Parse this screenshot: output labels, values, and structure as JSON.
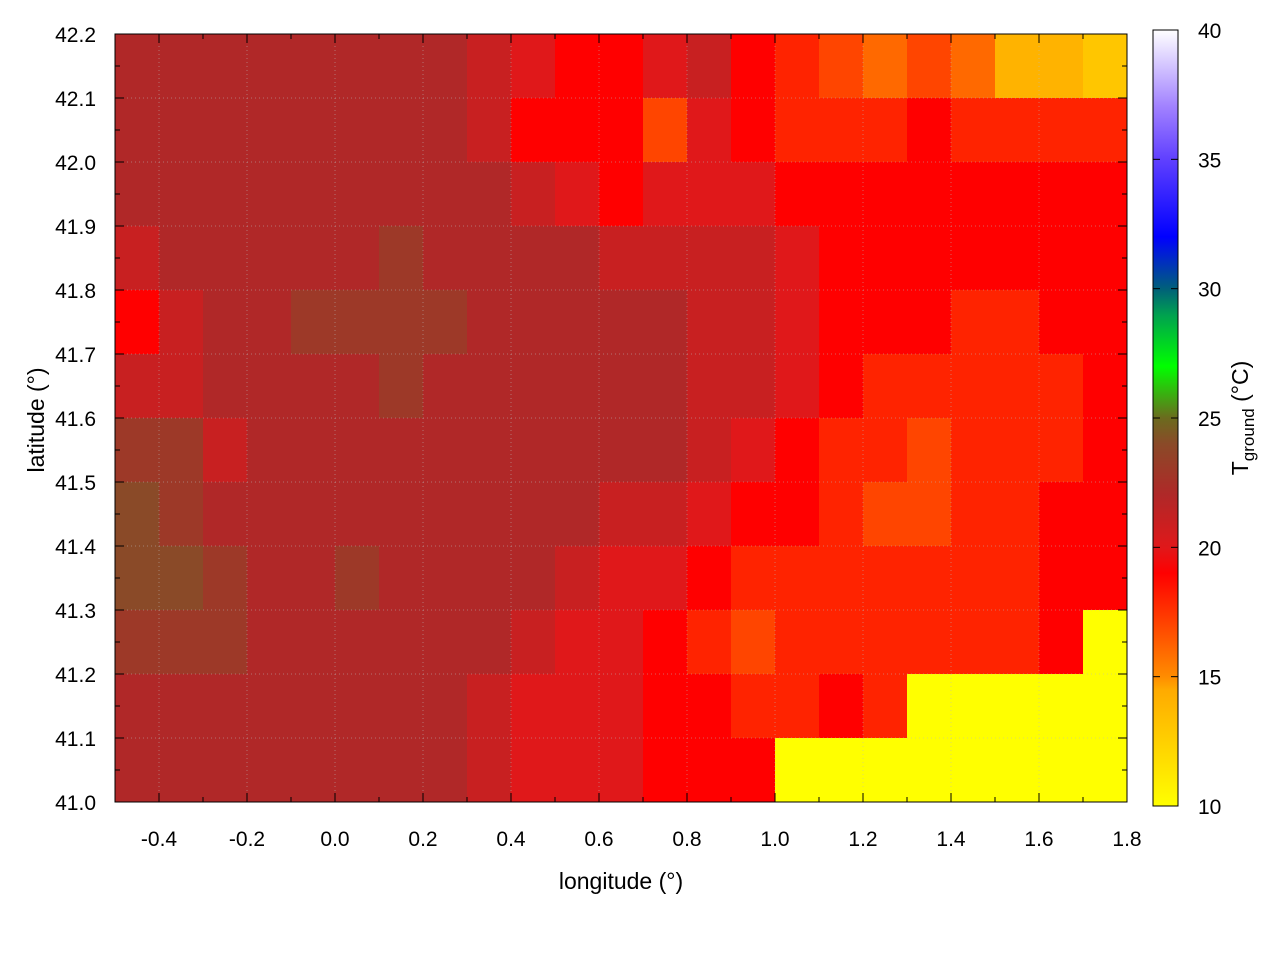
{
  "chart_data": {
    "type": "heatmap",
    "xlabel": "longitude (°)",
    "ylabel": "latitude (°)",
    "colorbar_label": "T",
    "colorbar_label_sub": "ground",
    "colorbar_label_unit": " (°C)",
    "xlim": [
      -0.5,
      1.8
    ],
    "ylim": [
      41.0,
      42.2
    ],
    "clim": [
      10,
      40
    ],
    "xticks": [
      "-0.4",
      "-0.2",
      "0.0",
      "0.2",
      "0.4",
      "0.6",
      "0.8",
      "1.0",
      "1.2",
      "1.4",
      "1.6",
      "1.8"
    ],
    "yticks": [
      "41.0",
      "41.1",
      "41.2",
      "41.3",
      "41.4",
      "41.5",
      "41.6",
      "41.7",
      "41.8",
      "41.9",
      "42.0",
      "42.1",
      "42.2"
    ],
    "cticks": [
      "10",
      "15",
      "20",
      "25",
      "30",
      "35",
      "40"
    ],
    "grid": true,
    "contours": true,
    "colormap": [
      [
        10,
        "#ffff00"
      ],
      [
        14.5,
        "#ffaa00"
      ],
      [
        15,
        "#ff8c00"
      ],
      [
        17,
        "#ff4500"
      ],
      [
        19,
        "#ff0000"
      ],
      [
        20,
        "#e0181a"
      ],
      [
        22,
        "#b02828"
      ],
      [
        24,
        "#8a4a28"
      ],
      [
        25,
        "#6b6b1e"
      ],
      [
        27,
        "#00ff00"
      ],
      [
        29,
        "#00a050"
      ],
      [
        30,
        "#00607a"
      ],
      [
        32,
        "#0000ff"
      ],
      [
        35,
        "#6040ff"
      ],
      [
        37,
        "#a080ff"
      ],
      [
        40,
        "#ffffff"
      ]
    ],
    "lon": [
      -0.45,
      -0.35,
      -0.25,
      -0.15,
      -0.05,
      0.05,
      0.15,
      0.25,
      0.35,
      0.45,
      0.55,
      0.65,
      0.75,
      0.85,
      0.95,
      1.05,
      1.15,
      1.25,
      1.35,
      1.45,
      1.55,
      1.65,
      1.75
    ],
    "lat": [
      42.15,
      42.05,
      41.95,
      41.85,
      41.75,
      41.65,
      41.55,
      41.45,
      41.35,
      41.25,
      41.15,
      41.05
    ],
    "values": [
      [
        22,
        22,
        22,
        22,
        22,
        22,
        22,
        22,
        21,
        20,
        19,
        19,
        20,
        21,
        19,
        18,
        17,
        16,
        17,
        16,
        14,
        14,
        13
      ],
      [
        22,
        22,
        22,
        22,
        22,
        22,
        22,
        22,
        21,
        19,
        19,
        19,
        17,
        20,
        19,
        18,
        18,
        18,
        19,
        18,
        18,
        18,
        18
      ],
      [
        22,
        22,
        22,
        22,
        22,
        22,
        22,
        22,
        22,
        21,
        20,
        19,
        20,
        20,
        20,
        19,
        19,
        19,
        19,
        19,
        19,
        19,
        19
      ],
      [
        21,
        22,
        22,
        22,
        22,
        22,
        23,
        22,
        22,
        22,
        22,
        21,
        21,
        21,
        21,
        20,
        19,
        19,
        19,
        19,
        19,
        19,
        19
      ],
      [
        19,
        21,
        22,
        22,
        23,
        23,
        23,
        23,
        22,
        22,
        22,
        22,
        22,
        21,
        21,
        20,
        19,
        19,
        19,
        18,
        18,
        19,
        19
      ],
      [
        21,
        21,
        22,
        22,
        22,
        22,
        23,
        22,
        22,
        22,
        22,
        22,
        22,
        21,
        21,
        20,
        19,
        18,
        18,
        18,
        18,
        18,
        19
      ],
      [
        23,
        23,
        21,
        22,
        22,
        22,
        22,
        22,
        22,
        22,
        22,
        22,
        22,
        21,
        20,
        19,
        18,
        18,
        17,
        18,
        18,
        18,
        19
      ],
      [
        24,
        23,
        22,
        22,
        22,
        22,
        22,
        22,
        22,
        22,
        22,
        21,
        21,
        20,
        19,
        19,
        18,
        17,
        17,
        18,
        18,
        19,
        19
      ],
      [
        24,
        24,
        23,
        22,
        22,
        23,
        22,
        22,
        22,
        22,
        21,
        20,
        20,
        19,
        18,
        18,
        18,
        18,
        18,
        18,
        18,
        19,
        19
      ],
      [
        23,
        23,
        23,
        22,
        22,
        22,
        22,
        22,
        22,
        21,
        20,
        20,
        19,
        18,
        17,
        18,
        18,
        18,
        18,
        18,
        18,
        19,
        10
      ],
      [
        22,
        22,
        22,
        22,
        22,
        22,
        22,
        22,
        21,
        20,
        20,
        20,
        19,
        19,
        18,
        18,
        19,
        18,
        10,
        10,
        10,
        10,
        10
      ],
      [
        22,
        22,
        22,
        22,
        22,
        22,
        22,
        22,
        21,
        20,
        20,
        20,
        19,
        19,
        19,
        10,
        10,
        10,
        10,
        10,
        10,
        10,
        10
      ]
    ]
  }
}
